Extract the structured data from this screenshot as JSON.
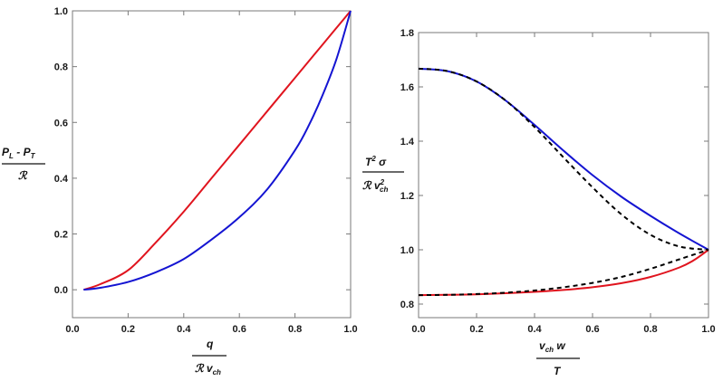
{
  "chart_data": [
    {
      "type": "line",
      "title": "",
      "xlabel": "q / (ℛ v_ch)",
      "ylabel": "(P_L − P_T) / ℛ",
      "xlim": [
        0.0,
        1.0
      ],
      "ylim": [
        -0.1,
        1.0
      ],
      "x_ticks": [
        "0.0",
        "0.2",
        "0.4",
        "0.6",
        "0.8",
        "1.0"
      ],
      "y_ticks": [
        "0.0",
        "0.2",
        "0.4",
        "0.6",
        "0.8",
        "1.0"
      ],
      "grid": false,
      "series": [
        {
          "color": "#e0141e",
          "style": "solid",
          "x": [
            0.04,
            0.1,
            0.2,
            0.3,
            0.4,
            0.5,
            0.6,
            0.7,
            0.8,
            0.9,
            1.0
          ],
          "y": [
            0.0,
            0.02,
            0.07,
            0.17,
            0.28,
            0.4,
            0.52,
            0.64,
            0.76,
            0.88,
            1.0
          ]
        },
        {
          "color": "#1414d2",
          "style": "solid",
          "x": [
            0.04,
            0.1,
            0.2,
            0.3,
            0.4,
            0.5,
            0.6,
            0.7,
            0.8,
            0.85,
            0.9,
            0.95,
            1.0
          ],
          "y": [
            0.0,
            0.007,
            0.028,
            0.063,
            0.11,
            0.18,
            0.26,
            0.36,
            0.5,
            0.59,
            0.7,
            0.83,
            1.0
          ]
        }
      ]
    },
    {
      "type": "line",
      "title": "",
      "xlabel": "v_ch w / T",
      "ylabel": "T² σ / (ℛ v_ch²)",
      "xlim": [
        0.0,
        1.0
      ],
      "ylim": [
        0.75,
        1.8
      ],
      "x_ticks": [
        "0.0",
        "0.2",
        "0.4",
        "0.6",
        "0.8",
        "1.0"
      ],
      "y_ticks": [
        "0.8",
        "1.0",
        "1.2",
        "1.4",
        "1.6",
        "1.8"
      ],
      "grid": false,
      "series": [
        {
          "color": "#1414d2",
          "style": "solid",
          "x": [
            0.0,
            0.1,
            0.2,
            0.3,
            0.4,
            0.5,
            0.6,
            0.7,
            0.8,
            0.9,
            1.0
          ],
          "y": [
            1.667,
            1.658,
            1.62,
            1.55,
            1.46,
            1.365,
            1.275,
            1.195,
            1.125,
            1.06,
            1.0
          ]
        },
        {
          "color": "#000000",
          "style": "dashed",
          "x": [
            0.0,
            0.1,
            0.2,
            0.3,
            0.4,
            0.5,
            0.6,
            0.7,
            0.8,
            0.9,
            1.0
          ],
          "y": [
            1.667,
            1.658,
            1.62,
            1.55,
            1.452,
            1.34,
            1.23,
            1.13,
            1.055,
            1.012,
            1.0
          ]
        },
        {
          "color": "#e0141e",
          "style": "solid",
          "x": [
            0.0,
            0.1,
            0.2,
            0.3,
            0.4,
            0.5,
            0.6,
            0.7,
            0.8,
            0.9,
            0.95,
            1.0
          ],
          "y": [
            0.833,
            0.834,
            0.836,
            0.84,
            0.845,
            0.852,
            0.862,
            0.877,
            0.9,
            0.935,
            0.962,
            1.0
          ]
        },
        {
          "color": "#000000",
          "style": "dashed",
          "x": [
            0.0,
            0.1,
            0.2,
            0.3,
            0.4,
            0.5,
            0.6,
            0.7,
            0.8,
            0.9,
            1.0
          ],
          "y": [
            0.833,
            0.834,
            0.837,
            0.842,
            0.85,
            0.862,
            0.878,
            0.9,
            0.93,
            0.965,
            1.0
          ]
        }
      ]
    }
  ],
  "labels": {
    "left_y_num_a": "P",
    "left_y_num_a_sub": "L",
    "left_y_num_b": " - P",
    "left_y_num_b_sub": "T",
    "left_y_den": "ℛ",
    "left_x_num": "q",
    "left_x_den": "ℛ v",
    "left_x_den_sub": "ch",
    "right_y_num": "T",
    "right_y_num_sup": "2",
    "right_y_num_b": " σ",
    "right_y_den": "ℛ v",
    "right_y_den_sup": "2",
    "right_y_den_sub": "ch",
    "right_x_num": "v",
    "right_x_num_sub": "ch",
    "right_x_num_b": " w",
    "right_x_den": "T"
  }
}
